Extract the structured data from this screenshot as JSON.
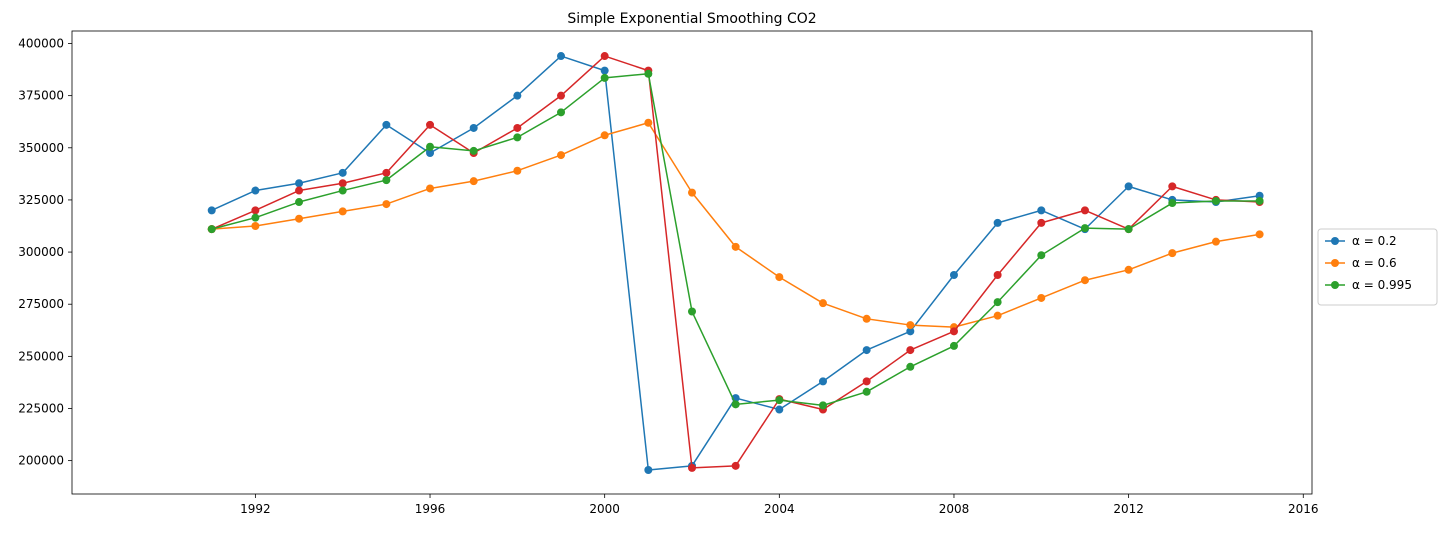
{
  "chart_data": {
    "type": "line",
    "title": "Simple Exponential Smoothing CO2",
    "xlabel": "",
    "ylabel": "",
    "xlim": [
      1987.8,
      2016.2
    ],
    "ylim": [
      184000,
      406000
    ],
    "x_ticks": [
      1992,
      1996,
      2000,
      2004,
      2008,
      2012,
      2016
    ],
    "y_ticks": [
      200000,
      225000,
      250000,
      275000,
      300000,
      325000,
      350000,
      375000,
      400000
    ],
    "grid": false,
    "legend_position": "right",
    "x": [
      1991,
      1992,
      1993,
      1994,
      1995,
      1996,
      1997,
      1998,
      1999,
      2000,
      2001,
      2002,
      2003,
      2004,
      2005,
      2006,
      2007,
      2008,
      2009,
      2010,
      2011,
      2012,
      2013,
      2014,
      2015
    ],
    "series": [
      {
        "name": "α = 0.2",
        "color": "#1f77b4",
        "in_legend": true,
        "values": [
          320000,
          329500,
          333000,
          338000,
          361000,
          347500,
          359500,
          375000,
          394000,
          387000,
          195500,
          197500,
          230000,
          224500,
          238000,
          253000,
          262000,
          289000,
          314000,
          320000,
          311000,
          331500,
          325000,
          324000,
          327000
        ]
      },
      {
        "name": "α = 0.6",
        "color": "#ff7f0e",
        "in_legend": true,
        "values": [
          311000,
          312500,
          316000,
          319500,
          323000,
          330500,
          334000,
          339000,
          346500,
          356000,
          362000,
          328500,
          302500,
          288000,
          275500,
          268000,
          265000,
          264000,
          269500,
          278000,
          286500,
          291500,
          299500,
          305000,
          308500
        ]
      },
      {
        "name": "α = 0.995",
        "color": "#2ca02c",
        "in_legend": true,
        "values": [
          311000,
          316500,
          324000,
          329500,
          334500,
          350500,
          348500,
          355000,
          367000,
          383500,
          385500,
          271500,
          227000,
          229000,
          226500,
          233000,
          245000,
          255000,
          276000,
          298500,
          311500,
          311000,
          323500,
          324500,
          324500
        ]
      },
      {
        "name": "",
        "color": "#d62728",
        "in_legend": false,
        "values": [
          311000,
          320000,
          329500,
          333000,
          338000,
          361000,
          347500,
          359500,
          375000,
          394000,
          387000,
          196500,
          197500,
          229500,
          224500,
          238000,
          253000,
          262000,
          289000,
          314000,
          320000,
          311000,
          331500,
          325000,
          324000
        ]
      }
    ]
  }
}
